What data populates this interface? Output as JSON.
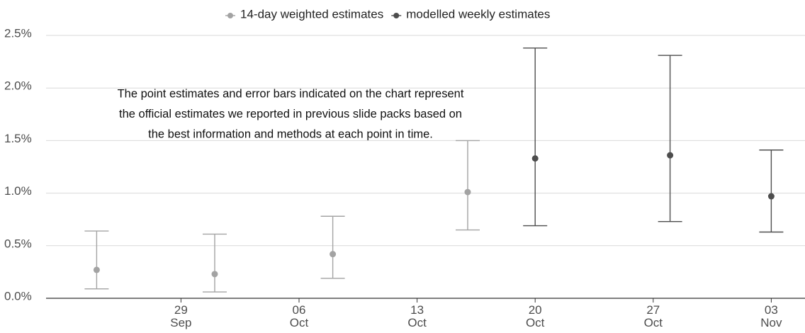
{
  "chart_data": {
    "type": "errorbar",
    "x": [
      "24 Sep",
      "1 Oct",
      "8 Oct",
      "16 Oct",
      "20 Oct",
      "28 Oct",
      "3 Nov"
    ],
    "series": [
      {
        "name": "14-day weighted estimates",
        "color": "#a3a3a3",
        "values": [
          0.27,
          0.23,
          0.42,
          1.01,
          null,
          null,
          null
        ],
        "lower": [
          0.09,
          0.06,
          0.19,
          0.65,
          null,
          null,
          null
        ],
        "upper": [
          0.64,
          0.61,
          0.78,
          1.5,
          null,
          null,
          null
        ]
      },
      {
        "name": "modelled weekly estimates",
        "color": "#4d4d4d",
        "values": [
          null,
          null,
          null,
          null,
          1.33,
          1.36,
          0.97
        ],
        "lower": [
          null,
          null,
          null,
          null,
          0.69,
          0.73,
          0.63
        ],
        "upper": [
          null,
          null,
          null,
          null,
          2.38,
          2.31,
          1.41
        ]
      }
    ],
    "ylim": [
      0,
      2.5
    ],
    "yticks": [
      {
        "value": 0,
        "label": "0.0%"
      },
      {
        "value": 0.5,
        "label": "0.5%"
      },
      {
        "value": 1,
        "label": "1.0%"
      },
      {
        "value": 1.5,
        "label": "1.5%"
      },
      {
        "value": 2,
        "label": "2.0%"
      },
      {
        "value": 2.5,
        "label": "2.5%"
      }
    ],
    "xlim": [
      "21 Sep",
      "5 Nov"
    ],
    "xticks": [
      "29 Sep",
      "06 Oct",
      "13 Oct",
      "20 Oct",
      "27 Oct",
      "03 Nov"
    ],
    "grid": true,
    "legend": "top",
    "annotation": [
      "The point estimates and error bars indicated on the chart represent",
      "the official estimates we reported in previous slide packs based on",
      "the best information and methods at each point in time."
    ]
  }
}
